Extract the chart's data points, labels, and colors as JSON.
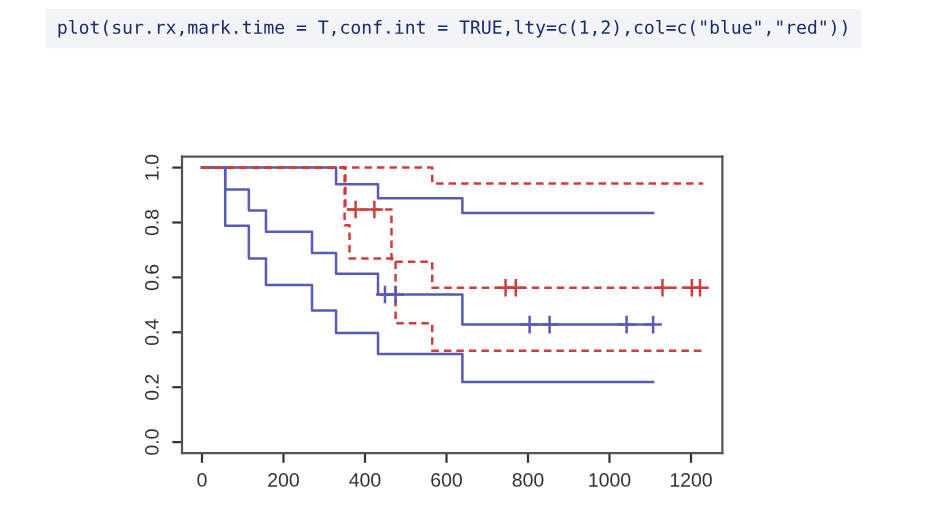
{
  "chart_data": {
    "type": "step",
    "annotations": [
      "plot(sur.rx,mark.time = T,conf.int = TRUE,lty=c(1,2),col=c(\"blue\",\"red\"))"
    ],
    "xlim": [
      -49,
      1277
    ],
    "ylim": [
      -0.04,
      1.04
    ],
    "xticks": [
      0,
      200,
      400,
      600,
      800,
      1000,
      1200
    ],
    "yticks": [
      {
        "value": 0,
        "label": "0.0"
      },
      {
        "value": 0.2,
        "label": "0.2"
      },
      {
        "value": 0.4,
        "label": "0.4"
      },
      {
        "value": 0.6,
        "label": "0.6"
      },
      {
        "value": 0.8,
        "label": "0.8"
      },
      {
        "value": 1.0,
        "label": "1.0"
      }
    ],
    "grid": false,
    "legend": false,
    "series": [
      {
        "color": "#5a5ab4",
        "line_style": "solid",
        "x": [
          0,
          57,
          115,
          157,
          270,
          329,
          432,
          639,
          1107
        ],
        "values": [
          1.0,
          0.92,
          0.844,
          0.766,
          0.689,
          0.613,
          0.538,
          0.428,
          0.428
        ]
      },
      {
        "color": "#5a5ab4",
        "line_style": "solid",
        "x": [
          0,
          329,
          432,
          639,
          1107
        ],
        "values": [
          1.0,
          0.939,
          0.888,
          0.835,
          0.835
        ]
      },
      {
        "color": "#5a5ab4",
        "line_style": "solid",
        "x": [
          0,
          57,
          115,
          157,
          270,
          329,
          432,
          639,
          1107
        ],
        "values": [
          1.0,
          0.788,
          0.669,
          0.572,
          0.479,
          0.397,
          0.321,
          0.219,
          0.219
        ]
      },
      {
        "color": "#cc3f3f",
        "line_style": "dashed",
        "x": [
          0,
          352,
          465,
          565,
          1230
        ],
        "values": [
          1.0,
          0.847,
          0.657,
          0.562,
          0.562
        ]
      },
      {
        "color": "#cc3f3f",
        "line_style": "dashed",
        "x": [
          0,
          565,
          1230
        ],
        "values": [
          1.0,
          0.942,
          0.942
        ]
      },
      {
        "color": "#cc3f3f",
        "line_style": "dashed",
        "x": [
          0,
          350,
          362,
          475,
          565,
          1230
        ],
        "values": [
          1.0,
          0.79,
          0.669,
          0.433,
          0.333,
          0.333
        ]
      },
      {
        "type": "scatter",
        "color": "#5a5ab4",
        "marker": "cross",
        "x": [
          449,
          475,
          804,
          853,
          1042,
          1107
        ],
        "values": [
          0.538,
          0.538,
          0.428,
          0.428,
          0.428,
          0.428
        ]
      },
      {
        "type": "scatter",
        "color": "#cc3f3f",
        "marker": "cross",
        "x": [
          377,
          423,
          745,
          770,
          1130,
          1202,
          1222
        ],
        "values": [
          0.847,
          0.847,
          0.562,
          0.562,
          0.562,
          0.562,
          0.562
        ]
      }
    ]
  }
}
